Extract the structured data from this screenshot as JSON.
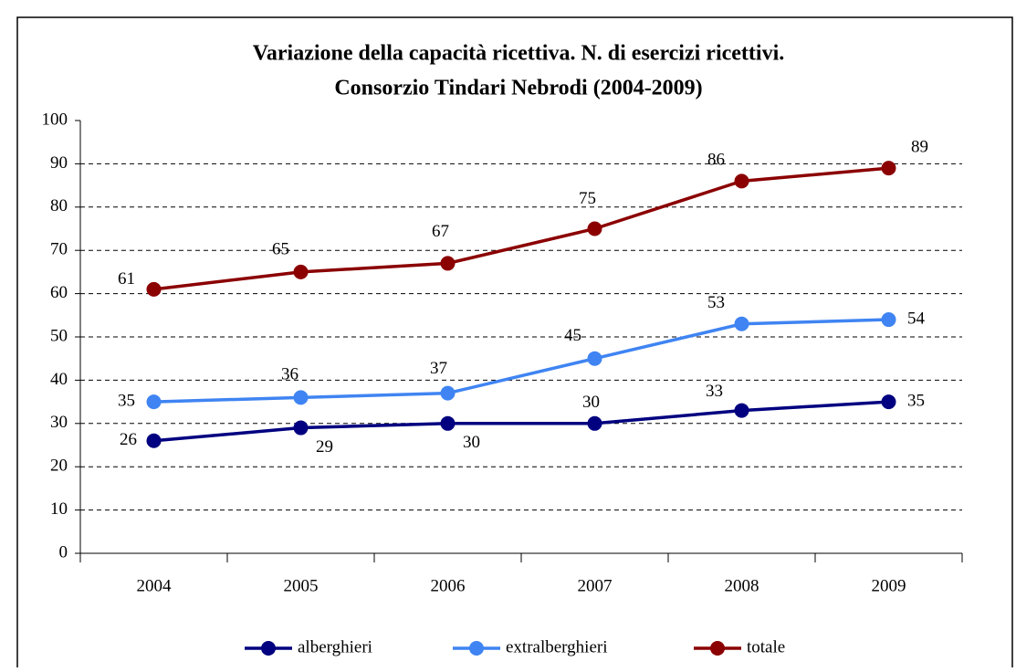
{
  "chart_data": {
    "type": "line",
    "title": [
      "Variazione della capacità ricettiva. N. di esercizi ricettivi.",
      "Consorzio Tindari Nebrodi (2004-2009)"
    ],
    "categories": [
      "2004",
      "2005",
      "2006",
      "2007",
      "2008",
      "2009"
    ],
    "series": [
      {
        "name": "alberghieri",
        "color": "#000080",
        "values": [
          26,
          29,
          30,
          30,
          33,
          35
        ]
      },
      {
        "name": "extralberghieri",
        "color": "#3f84f2",
        "values": [
          35,
          36,
          37,
          45,
          53,
          54
        ]
      },
      {
        "name": "totale",
        "color": "#8b0000",
        "values": [
          61,
          65,
          67,
          75,
          86,
          89
        ]
      }
    ],
    "ylim": [
      0,
      100
    ],
    "yticks": [
      0,
      10,
      20,
      30,
      40,
      50,
      60,
      70,
      80,
      90,
      100
    ],
    "grid": true,
    "legend": "bottom"
  }
}
